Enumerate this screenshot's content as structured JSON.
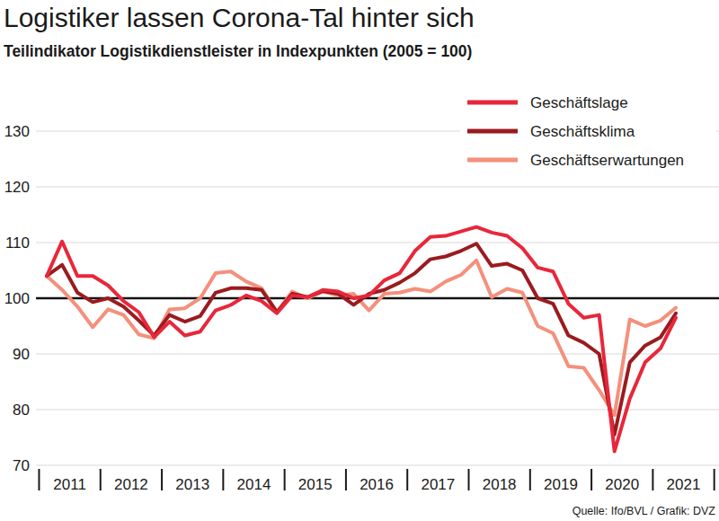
{
  "chart_data": {
    "type": "line",
    "title": "Logistiker lassen Corona-Tal hinter sich",
    "subtitle": "Teilindikator Logistikdienstleister in Indexpunkten (2005 = 100)",
    "source": "Quelle: Ifo/BVL / Grafik: DVZ",
    "categories": [
      null,
      "2011",
      null,
      null,
      null,
      "2012",
      null,
      null,
      null,
      "2013",
      null,
      null,
      null,
      "2014",
      null,
      null,
      null,
      "2015",
      null,
      null,
      null,
      "2016",
      null,
      null,
      null,
      "2017",
      null,
      null,
      null,
      "2018",
      null,
      null,
      null,
      "2019",
      null,
      null,
      null,
      "2020",
      null,
      null,
      null,
      "2021"
    ],
    "series": [
      {
        "name": "Geschäftslage",
        "color": "#e8273a",
        "values": [
          104,
          110.2,
          104,
          104,
          102.3,
          99.5,
          97.5,
          93,
          95.8,
          93.3,
          94,
          97.8,
          98.8,
          100.5,
          99.5,
          97.3,
          100.5,
          100.2,
          101.5,
          101.2,
          100,
          100.5,
          103.2,
          104.5,
          108.5,
          111,
          111.2,
          112,
          112.8,
          111.8,
          111.2,
          109,
          105.5,
          104.8,
          99,
          96.5,
          97,
          72.5,
          82,
          88.5,
          91,
          96.5
        ]
      },
      {
        "name": "Geschäftsklima",
        "color": "#9b1b1f",
        "values": [
          104,
          106,
          101,
          99.3,
          100,
          98.5,
          96,
          93.3,
          97,
          95.8,
          96.8,
          101,
          101.8,
          101.8,
          101.5,
          97.5,
          100.8,
          100.2,
          101.3,
          100.8,
          98.8,
          100.8,
          101.5,
          102.8,
          104.5,
          107,
          107.5,
          108.5,
          109.8,
          105.8,
          106.2,
          105,
          100,
          99,
          93.3,
          92,
          90,
          75.5,
          88.5,
          91.5,
          93,
          97.3
        ]
      },
      {
        "name": "Geschäftserwartungen",
        "color": "#f4907c",
        "values": [
          104,
          101.5,
          98.5,
          94.8,
          98,
          97,
          93.5,
          92.8,
          98,
          98.2,
          100,
          104.5,
          104.8,
          103,
          101.8,
          97.5,
          101.2,
          100,
          101.2,
          100.5,
          100.8,
          97.8,
          100.8,
          101,
          101.7,
          101.2,
          103,
          104.2,
          106.8,
          100.2,
          101.7,
          101,
          95,
          93.7,
          87.8,
          87.5,
          83.5,
          79,
          96.2,
          95,
          96,
          98.3
        ]
      }
    ],
    "ylim": [
      70,
      130
    ],
    "yticks": [
      70,
      80,
      90,
      100,
      110,
      120,
      130
    ],
    "baseline": 100,
    "grid": true,
    "legend": "upper right"
  }
}
